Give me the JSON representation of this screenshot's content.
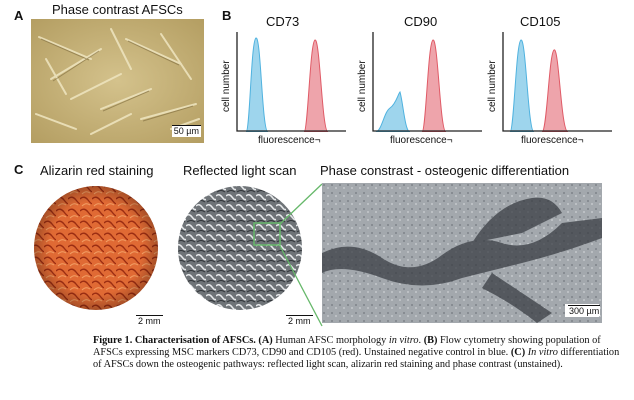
{
  "panelA": {
    "label": "A",
    "title": "Phase contrast AFSCs",
    "scale": "50 µm"
  },
  "panelB": {
    "label": "B",
    "ylabel": "cell number",
    "xlabel": "fluorescence¬",
    "titles": [
      "CD73",
      "CD90",
      "CD105"
    ]
  },
  "panelC": {
    "label": "C",
    "titles": [
      "Alizarin red staining",
      "Reflected light scan",
      "Phase constrast - osteogenic differentiation"
    ],
    "scale_alizarin": "2 mm",
    "scale_reflected": "2 mm",
    "scale_phase": "300 µm"
  },
  "caption": {
    "fig": "Figure 1.",
    "heading": "Characterisation of AFSCs.",
    "a_label": "(A)",
    "a_text": "Human AFSC morphology",
    "a_italic": "in vitro",
    "b_label": "(B)",
    "b_text": "Flow cytometry showing population of AFSCs expressing MSC markers CD73, CD90 and CD105 (red). Unstained negative control in blue.",
    "c_label": "(C)",
    "c_italic": "In vitro",
    "c_text": "differentiation of AFSCs down the osteogenic pathways: reflected light scan, alizarin red staining and phase contrast (unstained)."
  },
  "colors": {
    "blue": "#4fb2df",
    "red": "#e05a66",
    "alizarin": "#d8602f",
    "line": "#66b86a"
  }
}
